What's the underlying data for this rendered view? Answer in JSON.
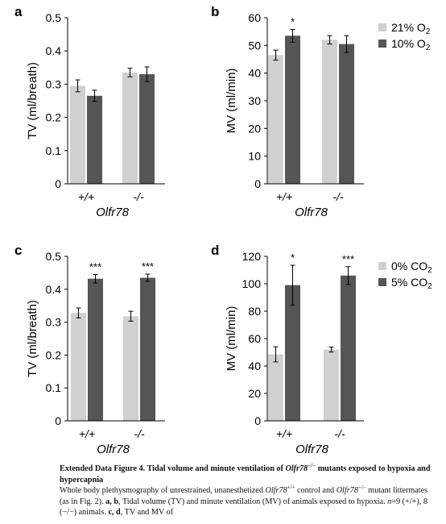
{
  "colors": {
    "light_bar": "#d0d0d0",
    "dark_bar": "#555555"
  },
  "chart_data": [
    {
      "type": "bar",
      "panel_label": "a",
      "categories": [
        "+/+",
        "-/-"
      ],
      "xlabel": "Olfr78",
      "ylabel": "TV (ml/breath)",
      "ylim": [
        0,
        0.5
      ],
      "yticks": [
        "0",
        "0.1",
        "0.2",
        "0.3",
        "0.4",
        "0.5"
      ],
      "series": [
        {
          "values": [
            0.295,
            0.335
          ],
          "errors": [
            0.018,
            0.013
          ]
        },
        {
          "values": [
            0.265,
            0.33
          ],
          "errors": [
            0.017,
            0.022
          ]
        }
      ],
      "significance": [],
      "legend": null
    },
    {
      "type": "bar",
      "panel_label": "b",
      "categories": [
        "+/+",
        "-/-"
      ],
      "xlabel": "Olfr78",
      "ylabel": "MV (ml/min)",
      "ylim": [
        0,
        60
      ],
      "yticks": [
        "0",
        "10",
        "20",
        "30",
        "40",
        "50",
        "60"
      ],
      "series": [
        {
          "name": "21% O",
          "sub": "2",
          "values": [
            46.5,
            52.0
          ],
          "errors": [
            1.8,
            1.5
          ]
        },
        {
          "name": "10% O",
          "sub": "2",
          "values": [
            53.5,
            50.5
          ],
          "errors": [
            2.3,
            3.0
          ]
        }
      ],
      "significance": [
        {
          "category_index": 0,
          "text": "*"
        }
      ],
      "legend": {
        "position": "top-right"
      }
    },
    {
      "type": "bar",
      "panel_label": "c",
      "categories": [
        "+/+",
        "-/-"
      ],
      "xlabel": "Olfr78",
      "ylabel": "TV (ml/breath)",
      "ylim": [
        0,
        0.5
      ],
      "yticks": [
        "0",
        "0.1",
        "0.2",
        "0.3",
        "0.4",
        "0.5"
      ],
      "series": [
        {
          "values": [
            0.328,
            0.318
          ],
          "errors": [
            0.015,
            0.015
          ]
        },
        {
          "values": [
            0.432,
            0.435
          ],
          "errors": [
            0.013,
            0.011
          ]
        }
      ],
      "significance": [
        {
          "category_index": 0,
          "text": "***"
        },
        {
          "category_index": 1,
          "text": "***"
        }
      ],
      "legend": null
    },
    {
      "type": "bar",
      "panel_label": "d",
      "categories": [
        "+/+",
        "-/-"
      ],
      "xlabel": "Olfr78",
      "ylabel": "MV (ml/min)",
      "ylim": [
        0,
        120
      ],
      "yticks": [
        "0",
        "20",
        "40",
        "60",
        "80",
        "100",
        "120"
      ],
      "series": [
        {
          "name": "0% CO",
          "sub": "2",
          "values": [
            48.5,
            52.0
          ],
          "errors": [
            5.5,
            1.8
          ]
        },
        {
          "name": "5% CO",
          "sub": "2",
          "values": [
            99.0,
            106.0
          ],
          "errors": [
            14.5,
            6.5
          ]
        }
      ],
      "significance": [
        {
          "category_index": 0,
          "text": "*"
        },
        {
          "category_index": 1,
          "text": "***"
        }
      ],
      "legend": {
        "position": "top-right"
      }
    }
  ],
  "caption": {
    "title_pre": "Extended Data Figure 4. Tidal volume and minute ventilation of ",
    "gene": "Olfr78",
    "title_sup": "−/−",
    "title_post": " mutants exposed to hypoxia and hypercapnia",
    "body_1": "Whole body plethysmography of unrestrained, unanesthetized ",
    "gene_2": "Olfr78",
    "sup_2": "+/+",
    "body_2": " control and ",
    "gene_3": "Olfr78",
    "sup_3": "−/−",
    "body_3": " mutant littermates (as in Fig. 2). ",
    "bold_ab": "a, b",
    "body_4": ", Tidal volume (TV) and minute ventilation (MV) of animals exposed to hypoxia. ",
    "n_italic": "n",
    "body_5": "=9 (+/+), 8 (−/−) animals. ",
    "bold_cd": "c, d",
    "body_6": ", TV and MV of"
  }
}
